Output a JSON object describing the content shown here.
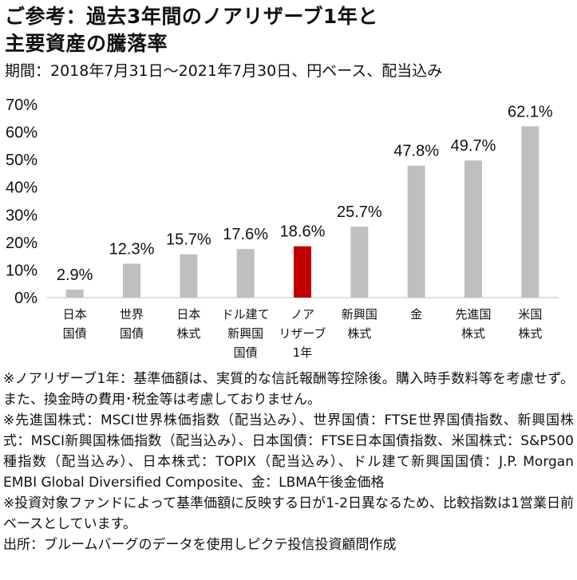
{
  "title_line1": "ご参考：過去3年間のノアリザーブ1年と",
  "title_line2": "主要資産の騰落率",
  "subtitle": "期間：2018年7月31日～2021年7月30日、円ベース、配当込み",
  "chart_data": {
    "type": "bar",
    "categories": [
      [
        "日本",
        "国債"
      ],
      [
        "世界",
        "国債"
      ],
      [
        "日本",
        "株式"
      ],
      [
        "ドル建て",
        "新興国",
        "国債"
      ],
      [
        "ノア",
        "リザーブ",
        "1年"
      ],
      [
        "新興国",
        "株式"
      ],
      [
        "金"
      ],
      [
        "先進国",
        "株式"
      ],
      [
        "米国",
        "株式"
      ]
    ],
    "values": [
      2.9,
      12.3,
      15.7,
      17.6,
      18.6,
      25.7,
      47.8,
      49.7,
      62.1
    ],
    "value_labels": [
      "2.9%",
      "12.3%",
      "15.7%",
      "17.6%",
      "18.6%",
      "25.7%",
      "47.8%",
      "49.7%",
      "62.1%"
    ],
    "highlight_index": 4,
    "bar_color": "#bfbfbf",
    "highlight_color": "#c00000",
    "ylim": [
      0,
      70
    ],
    "yticks": [
      0,
      10,
      20,
      30,
      40,
      50,
      60,
      70
    ],
    "ytick_labels": [
      "0%",
      "10%",
      "20%",
      "30%",
      "40%",
      "50%",
      "60%",
      "70%"
    ],
    "grid": false,
    "xlabel": "",
    "ylabel": ""
  },
  "notes": [
    "※ノアリザーブ1年：基準価額は、実質的な信託報酬等控除後。購入時手数料等を考慮せず。また、換金時の費用･税金等は考慮しておりません。",
    "※先進国株式：MSCI世界株価指数（配当込み）、世界国債：FTSE世界国債指数、新興国株式：MSCI新興国株価指数（配当込み）、日本国債：FTSE日本国債指数、米国株式：S&P500種指数（配当込み）、日本株式：TOPIX（配当込み）、ドル建て新興国国債：J.P. Morgan EMBI Global Diversified Composite、金：LBMA午後金価格",
    "※投資対象ファンドによって基準価額に反映する日が1-2日異なるため、比較指数は1営業日前ベースとしています。",
    "出所：ブルームバーグのデータを使用しピクテ投信投資顧問作成"
  ]
}
